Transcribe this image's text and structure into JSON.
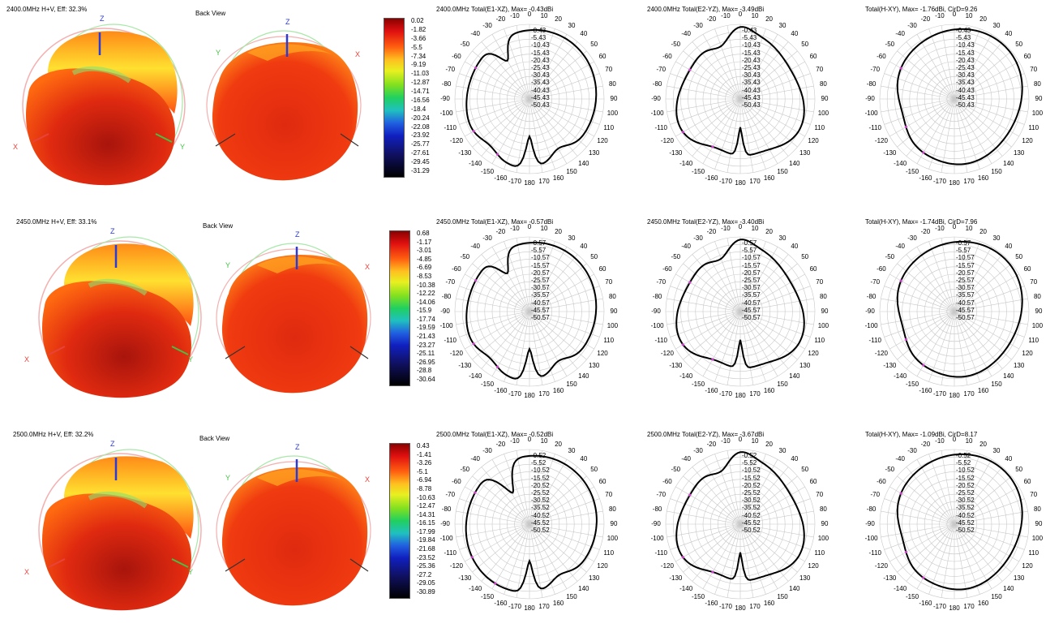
{
  "tick_angles": [
    "-10",
    "-20",
    "-30",
    "-40",
    "-50",
    "-60",
    "-70",
    "-80",
    "-90",
    "-100",
    "-110",
    "-120",
    "-130",
    "-140",
    "-150",
    "-160",
    "-170",
    "180",
    "170",
    "160",
    "150",
    "140",
    "130",
    "120",
    "110",
    "100",
    "90",
    "80",
    "70",
    "60",
    "50",
    "40",
    "30",
    "20",
    "10",
    "0"
  ],
  "colors": {
    "trace": "#000000",
    "marker": "#cc44cc",
    "grid": "#c8c8c8",
    "axis_x": "#e8433a",
    "axis_y": "#44c044",
    "axis_z": "#2a3bd6"
  },
  "rows": [
    {
      "label_3d": "2400.0MHz H+V, Eff: 32.3%",
      "label_back": "Back View",
      "axis_z": "Z",
      "axis_x": "X",
      "axis_y": "Y",
      "scale": [
        "0.02",
        "-1.82",
        "-3.66",
        "-5.5",
        "-7.34",
        "-9.19",
        "-11.03",
        "-12.87",
        "-14.71",
        "-16.56",
        "-18.4",
        "-20.24",
        "-22.08",
        "-23.92",
        "-25.77",
        "-27.61",
        "-29.45",
        "-31.29"
      ],
      "polars": [
        {
          "title": "2400.0MHz Total(E1-XZ), Max= -0.43dBi",
          "rings": [
            "-0.43",
            "-5.43",
            "-10.43",
            "-15.43",
            "-20.43",
            "-25.43",
            "-30.43",
            "-35.43",
            "-40.43",
            "-45.43",
            "-50.43"
          ],
          "shape": "A"
        },
        {
          "title": "2400.0MHz Total(E2-YZ), Max= -3.49dBi",
          "rings": [
            "-0.43",
            "-5.43",
            "-10.43",
            "-15.43",
            "-20.43",
            "-25.43",
            "-30.43",
            "-35.43",
            "-40.43",
            "-45.43",
            "-50.43"
          ],
          "shape": "B"
        },
        {
          "title": "Total(H-XY), Max= -1.76dBi, CirD=9.26",
          "rings": [
            "-0.43",
            "-5.43",
            "-10.43",
            "-15.43",
            "-20.43",
            "-25.43",
            "-30.43",
            "-35.43",
            "-40.43",
            "-45.43",
            "-50.43"
          ],
          "shape": "C"
        }
      ]
    },
    {
      "label_3d": "2450.0MHz H+V, Eff: 33.1%",
      "label_back": "Back View",
      "axis_z": "Z",
      "axis_x": "X",
      "axis_y": "Y",
      "scale": [
        "0.68",
        "-1.17",
        "-3.01",
        "-4.85",
        "-6.69",
        "-8.53",
        "-10.38",
        "-12.22",
        "-14.06",
        "-15.9",
        "-17.74",
        "-19.59",
        "-21.43",
        "-23.27",
        "-25.11",
        "-26.95",
        "-28.8",
        "-30.64"
      ],
      "polars": [
        {
          "title": "2450.0MHz Total(E1-XZ), Max= -0.57dBi",
          "rings": [
            "-0.57",
            "-5.57",
            "-10.57",
            "-15.57",
            "-20.57",
            "-25.57",
            "-30.57",
            "-35.57",
            "-40.57",
            "-45.57",
            "-50.57"
          ],
          "shape": "A"
        },
        {
          "title": "2450.0MHz Total(E2-YZ), Max= -3.40dBi",
          "rings": [
            "-0.57",
            "-5.57",
            "-10.57",
            "-15.57",
            "-20.57",
            "-25.57",
            "-30.57",
            "-35.57",
            "-40.57",
            "-45.57",
            "-50.57"
          ],
          "shape": "B"
        },
        {
          "title": "Total(H-XY), Max= -1.74dBi, CirD=7.96",
          "rings": [
            "-0.57",
            "-5.57",
            "-10.57",
            "-15.57",
            "-20.57",
            "-25.57",
            "-30.57",
            "-35.57",
            "-40.57",
            "-45.57",
            "-50.57"
          ],
          "shape": "C"
        }
      ]
    },
    {
      "label_3d": "2500.0MHz H+V, Eff: 32.2%",
      "label_back": "Back View",
      "axis_z": "Z",
      "axis_x": "X",
      "axis_y": "Y",
      "scale": [
        "0.43",
        "-1.41",
        "-3.26",
        "-5.1",
        "-6.94",
        "-8.78",
        "-10.63",
        "-12.47",
        "-14.31",
        "-16.15",
        "-17.99",
        "-19.84",
        "-21.68",
        "-23.52",
        "-25.36",
        "-27.2",
        "-29.05",
        "-30.89"
      ],
      "polars": [
        {
          "title": "2500.0MHz Total(E1-XZ), Max= -0.52dBi",
          "rings": [
            "-0.52",
            "-5.52",
            "-10.52",
            "-15.52",
            "-20.52",
            "-25.52",
            "-30.52",
            "-35.52",
            "-40.52",
            "-45.52",
            "-50.52"
          ],
          "shape": "A2"
        },
        {
          "title": "2500.0MHz Total(E2-YZ), Max= -3.67dBi",
          "rings": [
            "-0.52",
            "-5.52",
            "-10.52",
            "-15.52",
            "-20.52",
            "-25.52",
            "-30.52",
            "-35.52",
            "-40.52",
            "-45.52",
            "-50.52"
          ],
          "shape": "B"
        },
        {
          "title": "Total(H-XY), Max= -1.09dBi, CirD=8.17",
          "rings": [
            "-0.52",
            "-5.52",
            "-10.52",
            "-15.52",
            "-20.52",
            "-25.52",
            "-30.52",
            "-35.52",
            "-40.52",
            "-45.52",
            "-50.52"
          ],
          "shape": "C"
        }
      ]
    }
  ],
  "chart_data": [
    {
      "type": "polar",
      "title": "2400.0MHz Total(E1-XZ), Max= -0.43dBi",
      "rlim": [
        -50.43,
        -0.43
      ],
      "theta_ticks_deg": [
        0,
        10,
        20,
        30,
        40,
        50,
        60,
        70,
        80,
        90,
        100,
        110,
        120,
        130,
        140,
        150,
        160,
        170,
        180
      ]
    },
    {
      "type": "polar",
      "title": "2400.0MHz Total(E2-YZ), Max= -3.49dBi",
      "rlim": [
        -50.43,
        -0.43
      ]
    },
    {
      "type": "polar",
      "title": "Total(H-XY), Max= -1.76dBi, CirD=9.26",
      "rlim": [
        -50.43,
        -0.43
      ]
    },
    {
      "type": "polar",
      "title": "2450.0MHz Total(E1-XZ), Max= -0.57dBi",
      "rlim": [
        -50.57,
        -0.57
      ]
    },
    {
      "type": "polar",
      "title": "2450.0MHz Total(E2-YZ), Max= -3.40dBi",
      "rlim": [
        -50.57,
        -0.57
      ]
    },
    {
      "type": "polar",
      "title": "Total(H-XY), Max= -1.74dBi, CirD=7.96",
      "rlim": [
        -50.57,
        -0.57
      ]
    },
    {
      "type": "polar",
      "title": "2500.0MHz Total(E1-XZ), Max= -0.52dBi",
      "rlim": [
        -50.52,
        -0.52
      ]
    },
    {
      "type": "polar",
      "title": "2500.0MHz Total(E2-YZ), Max= -3.67dBi",
      "rlim": [
        -50.52,
        -0.52
      ]
    },
    {
      "type": "polar",
      "title": "Total(H-XY), Max= -1.09dBi, CirD=8.17",
      "rlim": [
        -50.52,
        -0.52
      ]
    }
  ]
}
